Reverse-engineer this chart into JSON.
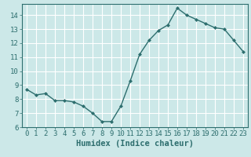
{
  "x": [
    0,
    1,
    2,
    3,
    4,
    5,
    6,
    7,
    8,
    9,
    10,
    11,
    12,
    13,
    14,
    15,
    16,
    17,
    18,
    19,
    20,
    21,
    22,
    23
  ],
  "y": [
    8.7,
    8.3,
    8.4,
    7.9,
    7.9,
    7.8,
    7.5,
    7.0,
    6.4,
    6.4,
    7.5,
    9.3,
    11.2,
    12.2,
    12.9,
    13.3,
    14.5,
    14.0,
    13.7,
    13.4,
    13.1,
    13.0,
    12.2,
    11.4
  ],
  "line_color": "#2d6e6e",
  "marker": "D",
  "marker_size": 2.5,
  "bg_color": "#cce8e8",
  "grid_color": "#ffffff",
  "xlabel": "Humidex (Indice chaleur)",
  "xlim": [
    -0.5,
    23.5
  ],
  "ylim": [
    6,
    14.8
  ],
  "yticks": [
    6,
    7,
    8,
    9,
    10,
    11,
    12,
    13,
    14
  ],
  "xticks": [
    0,
    1,
    2,
    3,
    4,
    5,
    6,
    7,
    8,
    9,
    10,
    11,
    12,
    13,
    14,
    15,
    16,
    17,
    18,
    19,
    20,
    21,
    22,
    23
  ],
  "tick_color": "#2d6e6e",
  "label_fontsize": 7.5,
  "tick_fontsize": 6.5
}
